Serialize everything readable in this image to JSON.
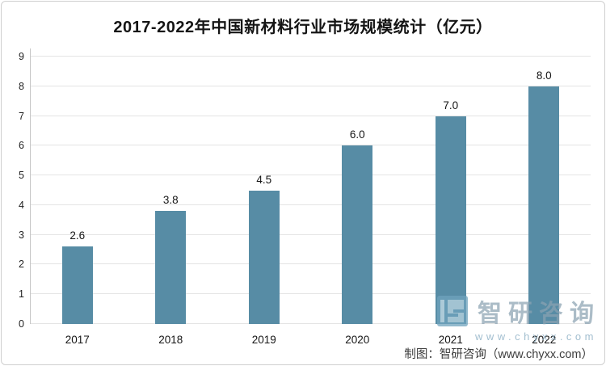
{
  "chart_data": {
    "type": "bar",
    "title": "2017-2022年中国新材料行业市场规模统计（亿元）",
    "categories": [
      "2017",
      "2018",
      "2019",
      "2020",
      "2021",
      "2022"
    ],
    "values": [
      2.6,
      3.8,
      4.5,
      6.0,
      7.0,
      8.0
    ],
    "value_labels": [
      "2.6",
      "3.8",
      "4.5",
      "6.0",
      "7.0",
      "8.0"
    ],
    "xlabel": "",
    "ylabel": "",
    "ylim": [
      0,
      9
    ],
    "yticks": [
      0,
      1,
      2,
      3,
      4,
      5,
      6,
      7,
      8,
      9
    ],
    "grid": "horizontal",
    "legend": "none",
    "bar_color": "#578CA5",
    "gridline_color": "#e4e4e4"
  },
  "watermark": {
    "logo_icon": "chyxx-logo",
    "brand": "智研咨询",
    "url": "www.chyxx.com"
  },
  "footer": {
    "attribution": "制图：智研咨询（www.chyxx.com）"
  }
}
